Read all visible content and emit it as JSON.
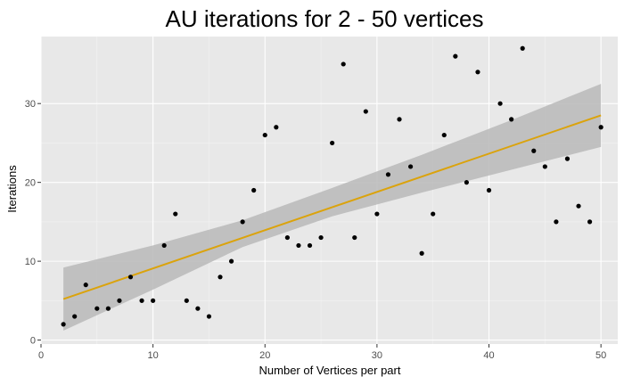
{
  "chart_data": {
    "type": "scatter",
    "title": "AU iterations  for 2 - 50 vertices",
    "xlabel": "Number of Vertices per part",
    "ylabel": "Iterations",
    "xlim": [
      0,
      51.5
    ],
    "ylim": [
      -0.5,
      38.5
    ],
    "x_ticks": [
      0,
      10,
      20,
      30,
      40,
      50
    ],
    "y_ticks": [
      0,
      10,
      20,
      30
    ],
    "grid": true,
    "legend": "none",
    "points": {
      "x": [
        2,
        3,
        4,
        5,
        6,
        7,
        8,
        9,
        10,
        11,
        12,
        13,
        14,
        15,
        16,
        17,
        18,
        19,
        20,
        21,
        22,
        23,
        24,
        25,
        26,
        27,
        28,
        29,
        30,
        31,
        32,
        33,
        34,
        35,
        36,
        37,
        38,
        39,
        40,
        41,
        42,
        43,
        44,
        45,
        46,
        47,
        48,
        49,
        50
      ],
      "y": [
        2,
        3,
        7,
        4,
        4,
        5,
        8,
        5,
        5,
        12,
        16,
        5,
        4,
        3,
        8,
        10,
        15,
        19,
        26,
        27,
        13,
        12,
        12,
        13,
        25,
        35,
        13,
        29,
        16,
        21,
        28,
        22,
        11,
        16,
        26,
        36,
        20,
        34,
        19,
        30,
        28,
        37,
        24,
        22,
        15,
        23,
        17,
        15,
        27
      ]
    },
    "fit_line": {
      "x": [
        2,
        50
      ],
      "y": [
        5.2,
        28.5
      ]
    },
    "confidence_band": {
      "x": [
        2,
        10,
        18,
        26,
        34,
        42,
        50
      ],
      "lower": [
        1.2,
        6.4,
        11.8,
        15.7,
        18.7,
        21.6,
        24.5
      ],
      "upper": [
        9.2,
        12.0,
        15.2,
        19.3,
        23.5,
        27.9,
        32.5
      ]
    },
    "colors": {
      "panel_background": "#e8e8e8",
      "grid_major": "#ffffff",
      "grid_minor": "#f3f3f3",
      "points": "#000000",
      "fit_line": "#dba30c",
      "band": "#b9b9b9"
    }
  }
}
